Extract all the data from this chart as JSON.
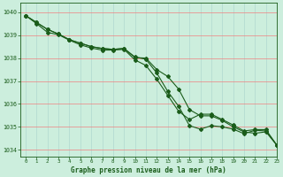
{
  "title": "Graphe pression niveau de la mer (hPa)",
  "background_color": "#cceedd",
  "grid_color_h": "#f08080",
  "grid_color_v": "#b0d8d0",
  "line_color": "#1a5c1a",
  "xlim": [
    -0.5,
    23
  ],
  "ylim": [
    1033.7,
    1040.4
  ],
  "yticks": [
    1034,
    1035,
    1036,
    1037,
    1038,
    1039,
    1040
  ],
  "xticks": [
    0,
    1,
    2,
    3,
    4,
    5,
    6,
    7,
    8,
    9,
    10,
    11,
    12,
    13,
    14,
    15,
    16,
    17,
    18,
    19,
    20,
    21,
    22,
    23
  ],
  "series1": [
    1039.85,
    1039.55,
    1039.25,
    1039.05,
    1038.8,
    1038.65,
    1038.5,
    1038.42,
    1038.38,
    1038.42,
    1038.05,
    1037.95,
    1037.35,
    1036.55,
    1035.9,
    1035.05,
    1034.9,
    1035.05,
    1035.0,
    1034.9,
    1034.7,
    1034.85,
    1034.82,
    1034.2
  ],
  "series2": [
    1039.85,
    1039.55,
    1039.25,
    1039.05,
    1038.8,
    1038.65,
    1038.5,
    1038.42,
    1038.38,
    1038.42,
    1038.02,
    1038.0,
    1037.5,
    1037.2,
    1036.65,
    1035.75,
    1035.48,
    1035.48,
    1035.28,
    1035.0,
    1034.78,
    1034.72,
    1034.78,
    1034.2
  ],
  "series3": [
    1039.85,
    1039.5,
    1039.12,
    1039.02,
    1038.78,
    1038.58,
    1038.44,
    1038.35,
    1038.35,
    1038.38,
    1037.92,
    1037.68,
    1037.08,
    1036.38,
    1035.68,
    1035.32,
    1035.55,
    1035.55,
    1035.32,
    1035.08,
    1034.82,
    1034.88,
    1034.88,
    1034.2
  ]
}
